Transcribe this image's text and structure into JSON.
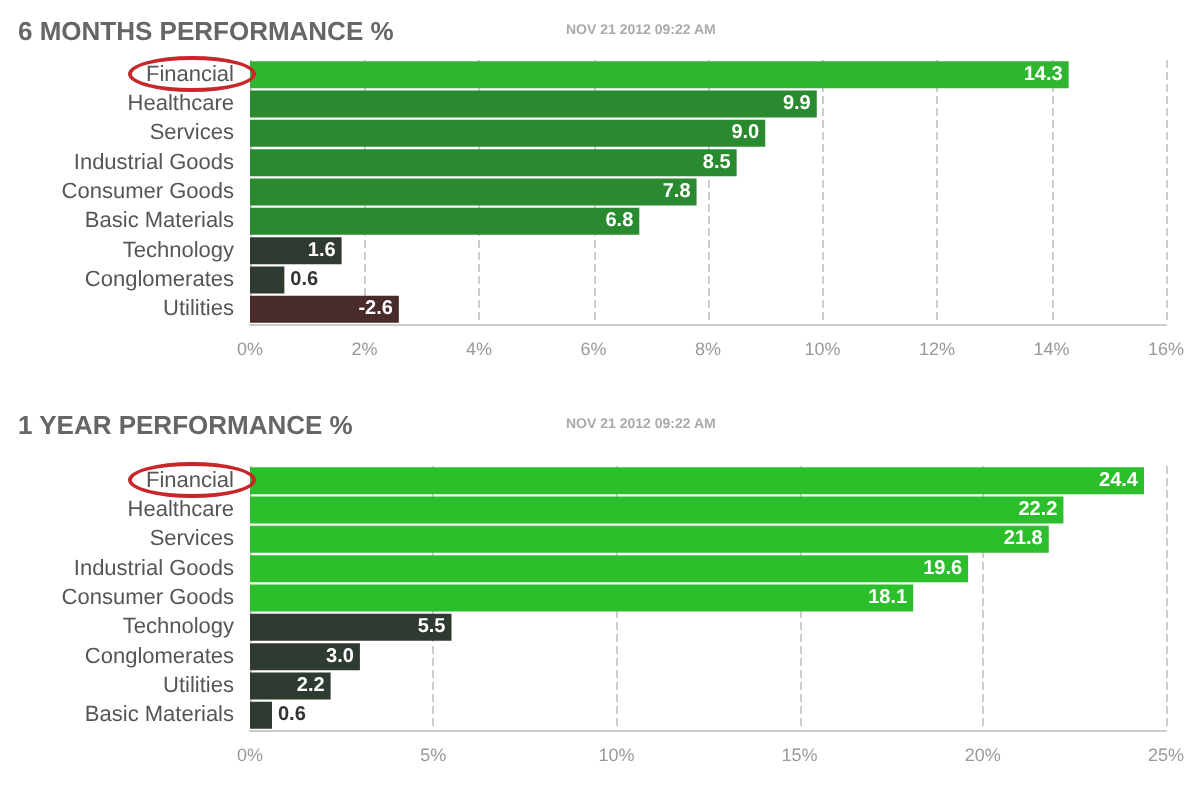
{
  "chart_data": [
    {
      "type": "bar",
      "orientation": "horizontal",
      "title": "6 MONTHS PERFORMANCE %",
      "subtitle": "NOV 21 2012 09:22 AM",
      "categories": [
        "Financial",
        "Healthcare",
        "Services",
        "Industrial Goods",
        "Consumer Goods",
        "Basic Materials",
        "Technology",
        "Conglomerates",
        "Utilities"
      ],
      "values": [
        14.3,
        9.9,
        9.0,
        8.5,
        7.8,
        6.8,
        1.6,
        0.6,
        -2.6
      ],
      "base": [
        0,
        0,
        0,
        0,
        0,
        0,
        0,
        0,
        2.6
      ],
      "value_labels": [
        "14.3",
        "9.9",
        "9.0",
        "8.5",
        "7.8",
        "6.8",
        "1.6",
        "0.6",
        "-2.6"
      ],
      "colors": [
        "#2fb52f",
        "#2a8a2f",
        "#2a8a2f",
        "#2a8a2f",
        "#2a8a2f",
        "#2a8a2f",
        "#2f3b31",
        "#2f3b31",
        "#4a2b2b"
      ],
      "xlim": [
        0,
        16
      ],
      "xticks": [
        {
          "value": 0,
          "label": "0%"
        },
        {
          "value": 2,
          "label": "2%"
        },
        {
          "value": 4,
          "label": "4%"
        },
        {
          "value": 6,
          "label": "6%"
        },
        {
          "value": 8,
          "label": "8%"
        },
        {
          "value": 10,
          "label": "10%"
        },
        {
          "value": 12,
          "label": "12%"
        },
        {
          "value": 14,
          "label": "14%"
        },
        {
          "value": 16,
          "label": "16%"
        }
      ],
      "grid": "x"
    },
    {
      "type": "bar",
      "orientation": "horizontal",
      "title": "1 YEAR PERFORMANCE %",
      "subtitle": "NOV 21 2012 09:22 AM",
      "categories": [
        "Financial",
        "Healthcare",
        "Services",
        "Industrial Goods",
        "Consumer Goods",
        "Technology",
        "Conglomerates",
        "Utilities",
        "Basic Materials"
      ],
      "values": [
        24.4,
        22.2,
        21.8,
        19.6,
        18.1,
        5.5,
        3.0,
        2.2,
        0.6
      ],
      "value_labels": [
        "24.4",
        "22.2",
        "21.8",
        "19.6",
        "18.1",
        "5.5",
        "3.0",
        "2.2",
        "0.6"
      ],
      "colors": [
        "#2cbf2c",
        "#2cbf2c",
        "#2cbf2c",
        "#2cbf2c",
        "#2cbf2c",
        "#2f3b31",
        "#2f3b31",
        "#2f3b31",
        "#2f3b31"
      ],
      "xlim": [
        0,
        25
      ],
      "xticks": [
        {
          "value": 0,
          "label": "0%"
        },
        {
          "value": 5,
          "label": "5%"
        },
        {
          "value": 10,
          "label": "10%"
        },
        {
          "value": 15,
          "label": "15%"
        },
        {
          "value": 20,
          "label": "20%"
        },
        {
          "value": 25,
          "label": "25%"
        }
      ],
      "grid": "x"
    }
  ]
}
